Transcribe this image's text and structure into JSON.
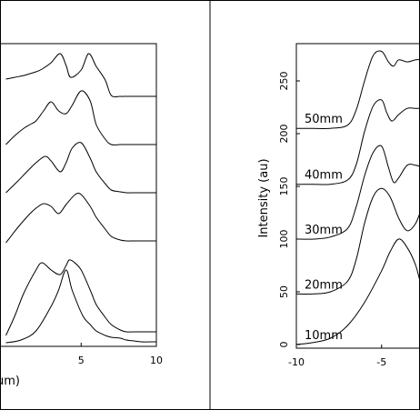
{
  "chart_data": [
    {
      "type": "line",
      "panel": "left",
      "title": "",
      "xlabel": "um)",
      "ylabel": "",
      "xlim": [
        0,
        10
      ],
      "x_ticks": [
        {
          "value": 5,
          "label": "5"
        },
        {
          "value": 10,
          "label": "10"
        }
      ],
      "series": [
        {
          "x": [
            0,
            1,
            2,
            3,
            3.5,
            4,
            4.4,
            5.1,
            5.6,
            6,
            6.6,
            7,
            7.6,
            8,
            8.5,
            9,
            10
          ],
          "y": [
            0,
            3,
            13,
            40,
            58,
            80,
            58,
            30,
            20,
            13,
            8,
            6,
            5,
            3,
            2,
            1,
            1
          ]
        },
        {
          "x": [
            0,
            0.6,
            1.2,
            2,
            2.4,
            3,
            3.6,
            4,
            4.2,
            4.5,
            5,
            5.6,
            6,
            6.6,
            7,
            7.6,
            8,
            8.5,
            9,
            10
          ],
          "y": [
            8,
            30,
            55,
            80,
            88,
            80,
            75,
            85,
            91,
            89,
            80,
            58,
            42,
            28,
            20,
            14,
            12,
            12,
            12,
            12
          ]
        },
        {
          "x": [
            0,
            0.8,
            1.6,
            2,
            2.5,
            3,
            3.5,
            4,
            4.6,
            5,
            5.6,
            6,
            6.6,
            7,
            7.6,
            8,
            8.5,
            9,
            10
          ],
          "y": [
            110,
            127,
            142,
            148,
            153,
            150,
            142,
            152,
            163,
            163,
            150,
            138,
            125,
            117,
            113,
            112,
            112,
            112,
            112
          ]
        },
        {
          "x": [
            0,
            0.8,
            1.5,
            2,
            2.6,
            3,
            3.6,
            4,
            4.4,
            5,
            5.6,
            6,
            6.6,
            7,
            7.6,
            8,
            8.5,
            9,
            10
          ],
          "y": [
            165,
            178,
            190,
            198,
            205,
            200,
            188,
            198,
            214,
            220,
            203,
            188,
            175,
            168,
            166,
            165,
            165,
            165,
            165
          ]
        },
        {
          "x": [
            0,
            0.6,
            1.2,
            1.6,
            2,
            2.5,
            3,
            3.5,
            4,
            4.4,
            5,
            5.6,
            6,
            6.6,
            7,
            7.6,
            8,
            8.5,
            9,
            10
          ],
          "y": [
            218,
            228,
            236,
            240,
            244,
            255,
            265,
            255,
            252,
            261,
            277,
            266,
            240,
            224,
            218,
            218,
            218,
            218,
            218,
            218
          ]
        },
        {
          "x": [
            0,
            0.6,
            1.2,
            1.6,
            2,
            2.4,
            3,
            3.6,
            4,
            4.3,
            5,
            5.5,
            6,
            6.6,
            7,
            7.6,
            8,
            8.5,
            9,
            10
          ],
          "y": [
            290,
            292,
            294,
            296,
            298,
            301,
            308,
            318,
            305,
            292,
            300,
            318,
            304,
            289,
            272,
            271,
            271,
            271,
            271,
            271
          ]
        }
      ]
    },
    {
      "type": "line",
      "panel": "right",
      "title": "",
      "xlabel": "",
      "ylabel": "Intensity (au)",
      "xlim": [
        -10,
        -2
      ],
      "ylim": [
        0,
        280
      ],
      "x_ticks": [
        {
          "value": -10,
          "label": "-10"
        },
        {
          "value": -5,
          "label": "-5"
        }
      ],
      "y_ticks": [
        {
          "value": 0,
          "label": "0"
        },
        {
          "value": 50,
          "label": "50"
        },
        {
          "value": 100,
          "label": "100"
        },
        {
          "value": 150,
          "label": "150"
        },
        {
          "value": 200,
          "label": "200"
        },
        {
          "value": 250,
          "label": "250"
        }
      ],
      "series": [
        {
          "name": "10mm",
          "x": [
            -10,
            -9,
            -8,
            -7,
            -6,
            -5,
            -4.5,
            -4,
            -3.5,
            -3,
            -2.6
          ],
          "y": [
            0,
            2,
            6,
            18,
            40,
            70,
            88,
            100,
            92,
            75,
            50
          ]
        },
        {
          "name": "20mm",
          "x": [
            -10,
            -9,
            -8,
            -7,
            -6.5,
            -6,
            -5.5,
            -5,
            -4.5,
            -4,
            -3.5,
            -3,
            -2.6
          ],
          "y": [
            48,
            48,
            50,
            60,
            80,
            115,
            140,
            148,
            140,
            120,
            108,
            115,
            132
          ]
        },
        {
          "name": "30mm",
          "x": [
            -10,
            -9,
            -8,
            -7,
            -6.5,
            -6,
            -5.5,
            -5,
            -4.6,
            -4.3,
            -4,
            -3.5,
            -3,
            -2.6
          ],
          "y": [
            100,
            100,
            102,
            110,
            130,
            160,
            182,
            188,
            168,
            154,
            158,
            170,
            170,
            168
          ]
        },
        {
          "name": "40mm",
          "x": [
            -10,
            -9,
            -8,
            -7,
            -6.5,
            -6,
            -5.5,
            -5,
            -4.7,
            -4.4,
            -4,
            -3.5,
            -3,
            -2.6
          ],
          "y": [
            152,
            152,
            152,
            156,
            170,
            202,
            226,
            232,
            220,
            212,
            218,
            224,
            224,
            224
          ]
        },
        {
          "name": "50mm",
          "x": [
            -10,
            -9,
            -8,
            -7,
            -6.5,
            -6,
            -5.5,
            -5,
            -4.6,
            -4.3,
            -4,
            -3.5,
            -3,
            -2.6
          ],
          "y": [
            205,
            205,
            205,
            208,
            222,
            250,
            274,
            278,
            268,
            264,
            270,
            268,
            270,
            270
          ]
        }
      ]
    }
  ]
}
